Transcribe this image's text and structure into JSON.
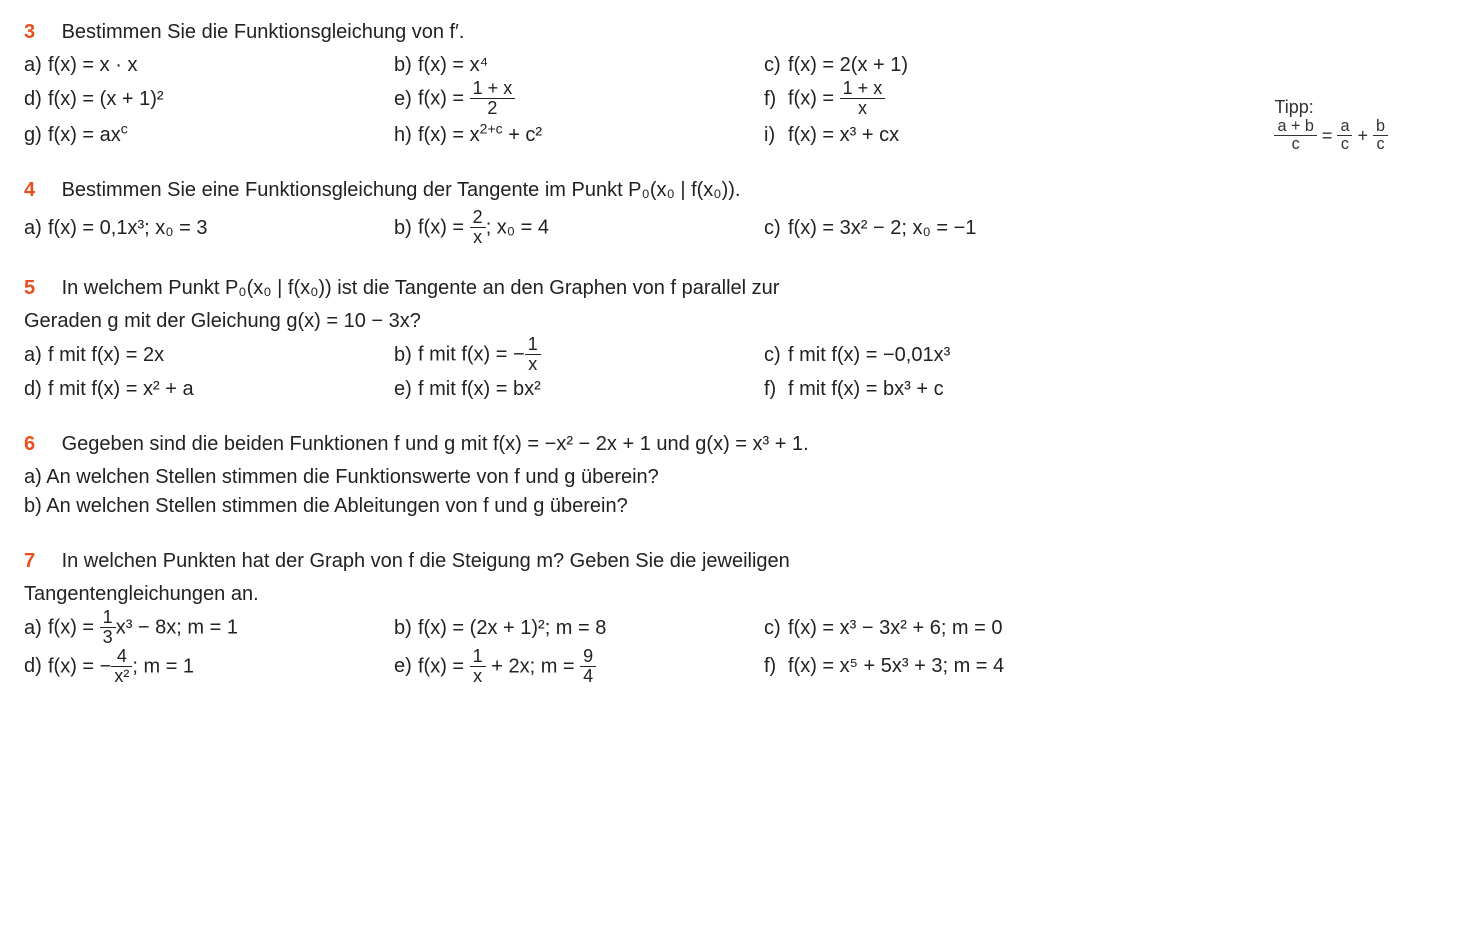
{
  "colors": {
    "accent": "#e94f1d",
    "text": "#222222",
    "bg": "#ffffff"
  },
  "tipp": {
    "label": "Tipp:",
    "lhs_num": "a + b",
    "lhs_den": "c",
    "rhs1_num": "a",
    "rhs1_den": "c",
    "rhs2_num": "b",
    "rhs2_den": "c"
  },
  "q3": {
    "num": "3",
    "prompt": "Bestimmen Sie die Funktionsgleichung von f′.",
    "a": {
      "l": "a)",
      "t": "f(x) = x · x"
    },
    "b": {
      "l": "b)",
      "t": "f(x) = x⁴"
    },
    "c": {
      "l": "c)",
      "t": "f(x) = 2(x + 1)"
    },
    "d": {
      "l": "d)",
      "t": "f(x) = (x + 1)²"
    },
    "e": {
      "l": "e)",
      "pre": "f(x) = ",
      "num": "1 + x",
      "den": "2"
    },
    "f": {
      "l": "f)",
      "pre": "f(x) = ",
      "num": "1 + x",
      "den": "x"
    },
    "g": {
      "l": "g)",
      "t": "f(x) = ax^c"
    },
    "h": {
      "l": "h)",
      "t": "f(x) = x^(2+c) + c²"
    },
    "i": {
      "l": "i)",
      "t": "f(x) = x³ + cx"
    }
  },
  "q4": {
    "num": "4",
    "prompt": "Bestimmen Sie eine Funktionsgleichung der Tangente im Punkt  P₀(x₀ | f(x₀)).",
    "a": {
      "l": "a)",
      "t": "f(x) = 0,1x³;  x₀ = 3"
    },
    "b": {
      "l": "b)",
      "pre": "f(x) = ",
      "num": "2",
      "den": "x",
      "post": ";  x₀ = 4"
    },
    "c": {
      "l": "c)",
      "t": "f(x) = 3x² − 2;  x₀ = −1"
    }
  },
  "q5": {
    "num": "5",
    "prompt1": "In welchem Punkt  P₀(x₀ | f(x₀))  ist die Tangente an den Graphen von f parallel zur",
    "prompt2": "Geraden g mit der Gleichung  g(x) = 10 − 3x?",
    "a": {
      "l": "a)",
      "t": "f mit  f(x) = 2x"
    },
    "b": {
      "l": "b)",
      "pre": "f mit  f(x) = −",
      "num": "1",
      "den": "x"
    },
    "c": {
      "l": "c)",
      "t": "f mit  f(x) = −0,01x³"
    },
    "d": {
      "l": "d)",
      "t": "f mit  f(x) = x² + a"
    },
    "e": {
      "l": "e)",
      "t": "f mit  f(x) = bx²"
    },
    "f": {
      "l": "f)",
      "t": "f mit  f(x) = bx³ + c"
    }
  },
  "q6": {
    "num": "6",
    "prompt": "Gegeben sind die beiden Funktionen f und g mit  f(x) = −x² − 2x + 1  und  g(x) = x³ + 1.",
    "a": "a)  An welchen Stellen stimmen die Funktionswerte von f und g überein?",
    "b": "b)  An welchen Stellen stimmen die Ableitungen von f und g überein?"
  },
  "q7": {
    "num": "7",
    "prompt1": "In welchen Punkten hat der Graph von f die Steigung m? Geben Sie die jeweiligen",
    "prompt2": "Tangentengleichungen an.",
    "a": {
      "l": "a)",
      "pre": "f(x) = ",
      "num": "1",
      "den": "3",
      "post": "x³ − 8x;  m = 1"
    },
    "b": {
      "l": "b)",
      "t": "f(x) = (2x + 1)²;  m = 8"
    },
    "c": {
      "l": "c)",
      "t": "f(x) = x³ − 3x² + 6;  m = 0"
    },
    "d": {
      "l": "d)",
      "pre": "f(x) = −",
      "num": "4",
      "den": "x²",
      "post": ";  m = 1"
    },
    "e": {
      "l": "e)",
      "pre": "f(x) = ",
      "num": "1",
      "den": "x",
      "post": " + 2x;  m = ",
      "num2": "9",
      "den2": "4"
    },
    "f": {
      "l": "f)",
      "t": "f(x) = x⁵ + 5x³ + 3;  m = 4"
    }
  }
}
